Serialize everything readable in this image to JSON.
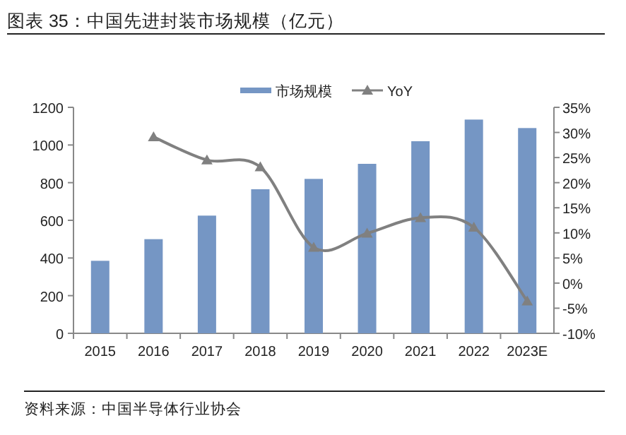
{
  "chart_data": {
    "type": "bar",
    "title": "图表 35：中国先进封装市场规模（亿元）",
    "annotations": [
      "资料来源：中国半导体行业协会"
    ],
    "categories": [
      "2015",
      "2016",
      "2017",
      "2018",
      "2019",
      "2020",
      "2021",
      "2022",
      "2023E"
    ],
    "series": [
      {
        "name": "市场规模",
        "color": "#7596c4",
        "values": [
          385,
          500,
          625,
          765,
          820,
          900,
          1020,
          1135,
          1090
        ]
      },
      {
        "name": "YoY",
        "type": "line",
        "axis": "y2",
        "color": "#808080",
        "marker": "triangle",
        "values": [
          null,
          29.1,
          24.5,
          23.1,
          7.1,
          9.9,
          13.0,
          11.1,
          -3.6
        ]
      }
    ],
    "ylim": [
      0,
      1200
    ],
    "yticks": [
      0,
      200,
      400,
      600,
      800,
      1000,
      1200
    ],
    "y2lim": [
      -10,
      35
    ],
    "y2ticks": [
      {
        "value": -10,
        "label": "-10%"
      },
      {
        "value": -5,
        "label": "-5%"
      },
      {
        "value": 0,
        "label": "0%"
      },
      {
        "value": 5,
        "label": "5%"
      },
      {
        "value": 10,
        "label": "10%"
      },
      {
        "value": 15,
        "label": "15%"
      },
      {
        "value": 20,
        "label": "20%"
      },
      {
        "value": 25,
        "label": "25%"
      },
      {
        "value": 30,
        "label": "30%"
      },
      {
        "value": 35,
        "label": "35%"
      }
    ],
    "legend": "top",
    "grid": false
  }
}
